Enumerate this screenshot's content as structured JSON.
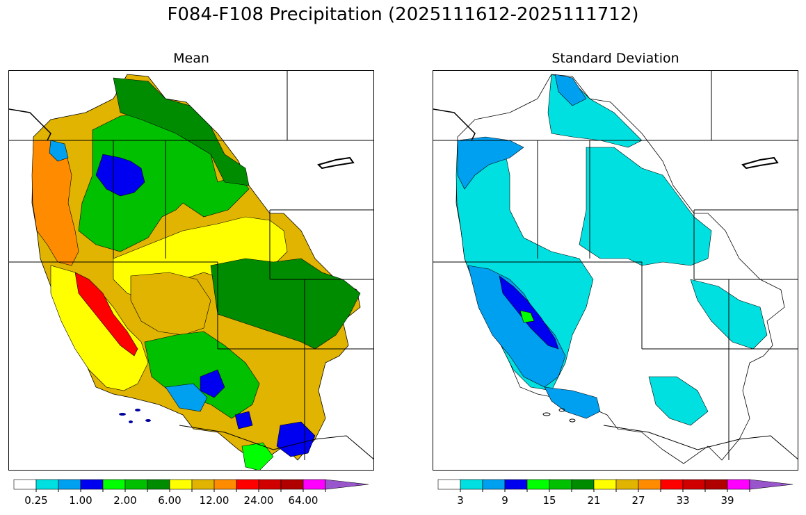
{
  "figure": {
    "title": "F084-F108 Precipitation (2025111612-2025111712)"
  },
  "panels": [
    {
      "id": "mean",
      "title": "Mean",
      "colorbar": {
        "colors": [
          "#ffffff",
          "#00e0e0",
          "#00a0f0",
          "#0000f0",
          "#00ff00",
          "#00c000",
          "#008c00",
          "#ffff00",
          "#e0b400",
          "#ff8c00",
          "#ff0000",
          "#d00000",
          "#b00000",
          "#ff00ff",
          "#9955cc"
        ],
        "tick_labels": [
          "0.25",
          "1.00",
          "2.00",
          "6.00",
          "12.00",
          "24.00",
          "64.00"
        ]
      }
    },
    {
      "id": "stddev",
      "title": "Standard Deviation",
      "colorbar": {
        "colors": [
          "#ffffff",
          "#00e0e0",
          "#00a0f0",
          "#0000f0",
          "#00ff00",
          "#00c000",
          "#008c00",
          "#ffff00",
          "#e0b400",
          "#ff8c00",
          "#ff0000",
          "#d00000",
          "#b00000",
          "#ff00ff",
          "#9955cc"
        ],
        "tick_labels": [
          "3",
          "9",
          "15",
          "21",
          "27",
          "33",
          "39"
        ]
      }
    }
  ]
}
